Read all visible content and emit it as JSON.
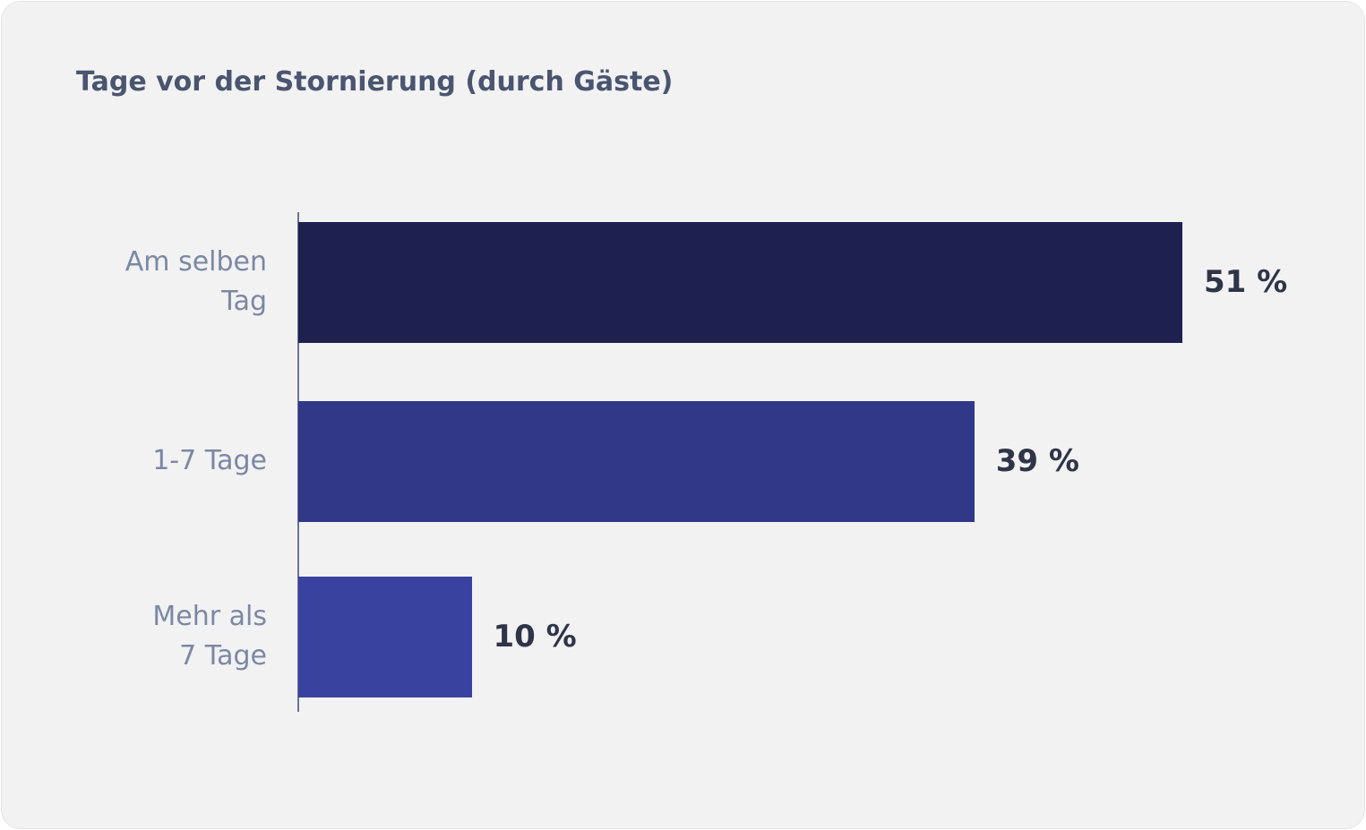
{
  "chart_data": {
    "type": "bar",
    "orientation": "horizontal",
    "title": "Tage vor der Stornierung (durch Gäste)",
    "categories": [
      [
        "Am selben",
        "Tag"
      ],
      [
        "1-7 Tage"
      ],
      [
        "Mehr als",
        "7 Tage"
      ]
    ],
    "values": [
      51,
      39,
      10
    ],
    "value_labels": [
      "51 %",
      "39 %",
      "10 %"
    ],
    "colors": [
      "#1e2150",
      "#313888",
      "#3a42a0"
    ]
  }
}
